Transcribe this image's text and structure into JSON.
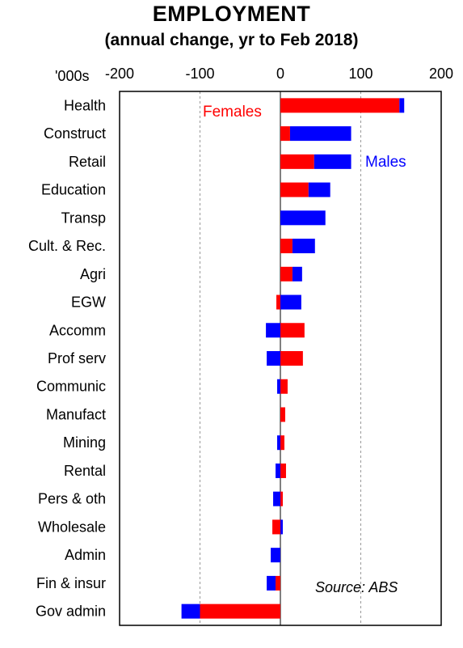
{
  "title": "EMPLOYMENT",
  "subtitle": "(annual change, yr to Feb 2018)",
  "unit_label": "'000s",
  "source": "Source: ABS",
  "colors": {
    "females": "#ff0000",
    "males": "#0000ff",
    "grid": "#999999"
  },
  "chart_data": {
    "type": "bar",
    "orientation": "horizontal",
    "stacked": true,
    "xlim": [
      -200,
      200
    ],
    "xticks": [
      -200,
      -100,
      0,
      100,
      200
    ],
    "tick_position": "top",
    "grid": "vertical dashed",
    "categories": [
      "Health",
      "Construct",
      "Retail",
      "Education",
      "Transp",
      "Cult. & Rec.",
      "Agri",
      "EGW",
      "Accomm",
      "Prof serv",
      "Communic",
      "Manufact",
      "Mining ",
      "Rental",
      "Pers & oth",
      "Wholesale",
      "Admin",
      "Fin & insur",
      "Gov admin"
    ],
    "series": [
      {
        "name": "Females",
        "values": [
          148,
          12,
          42,
          35,
          0,
          15,
          15,
          -5,
          30,
          28,
          9,
          6,
          5,
          7,
          3,
          -10,
          0,
          -6,
          -100
        ]
      },
      {
        "name": "Males",
        "values": [
          6,
          76,
          46,
          27,
          56,
          28,
          12,
          26,
          -18,
          -17,
          -4,
          0,
          -4,
          -6,
          -9,
          3,
          -12,
          -11,
          -23
        ]
      }
    ]
  }
}
